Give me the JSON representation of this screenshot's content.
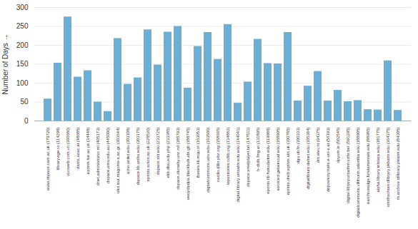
{
  "chart_data": {
    "type": "bar",
    "categories": [
      "www.dspace.cam.ac.uk (179720)",
      "library.ege.ro (114298)",
      "vivoweb.com.vn (360680)",
      "dams.uoac.at (48685)",
      "eprints.lse.ac.uk (34448)",
      "dnet.administrator.ml (405173)",
      "dspace.amu.edu.au (445000)",
      "ukd.isut.magome-s.ac.gc (303644)",
      "arno.unilet.edu (303108)",
      "dspace.lib.unibu.edu (303175)",
      "eprints.soton.ac.uk (228520)",
      "dspace.mit.edu (233725)",
      "elib.dlsu.edu.php (233385)",
      "dspace.dtoneby.unc.nd (185793)",
      "www.dpdpa.blackbulk.abt.gb (188745)",
      "theses.lib.mqu.nt (163053)",
      "digitalcommons.univ.edu (163500)",
      "cardio.dlibr.pbz.org (158665)",
      "repositories.cdlib.org (134882)",
      "digital.library.umsalm.edu.edu (144041)",
      "dspace.xrealplayer.lat (147511)",
      "lr-drdb.fmg.at (131895)",
      "eprints.lib.hokudaikm.edu (119988)",
      "serviced.gelatinoud.edu (168995)",
      "eprints.dncb.eptnm.abt.uk (100785)",
      "dgu.ub.fn (100333)",
      "digitallibium.dalnet.edu (105384)",
      "dm.elev.nt (94375)",
      "depository.tralis.e-uni-s.at (56193)",
      "dpyom.le (502545)",
      "digital.library.urnathm.crthr.ber (591295)",
      "digitalcommons.villthurm.udontba.edu (188905)",
      "earchivesdge.fundamentals.edu (88985)",
      "alpha.library.telstara.edu (181775)",
      "smithsonian.dlibrary.pkbatm.edu (364375)",
      "m.archive.idlibrary.pklatm.edu (84305)"
    ],
    "values": [
      58,
      153,
      275,
      116,
      133,
      50,
      25,
      218,
      97,
      114,
      241,
      148,
      235,
      250,
      87,
      197,
      234,
      163,
      255,
      47,
      103,
      216,
      152,
      151,
      234,
      53,
      92,
      131,
      53,
      81,
      51,
      54,
      30,
      29,
      159,
      28
    ],
    "color": "#6baed6",
    "ylabel": "Number of Days",
    "ylim": [
      0,
      300
    ],
    "yticks": [
      0,
      50,
      100,
      150,
      200,
      250,
      300
    ],
    "grid": true
  }
}
